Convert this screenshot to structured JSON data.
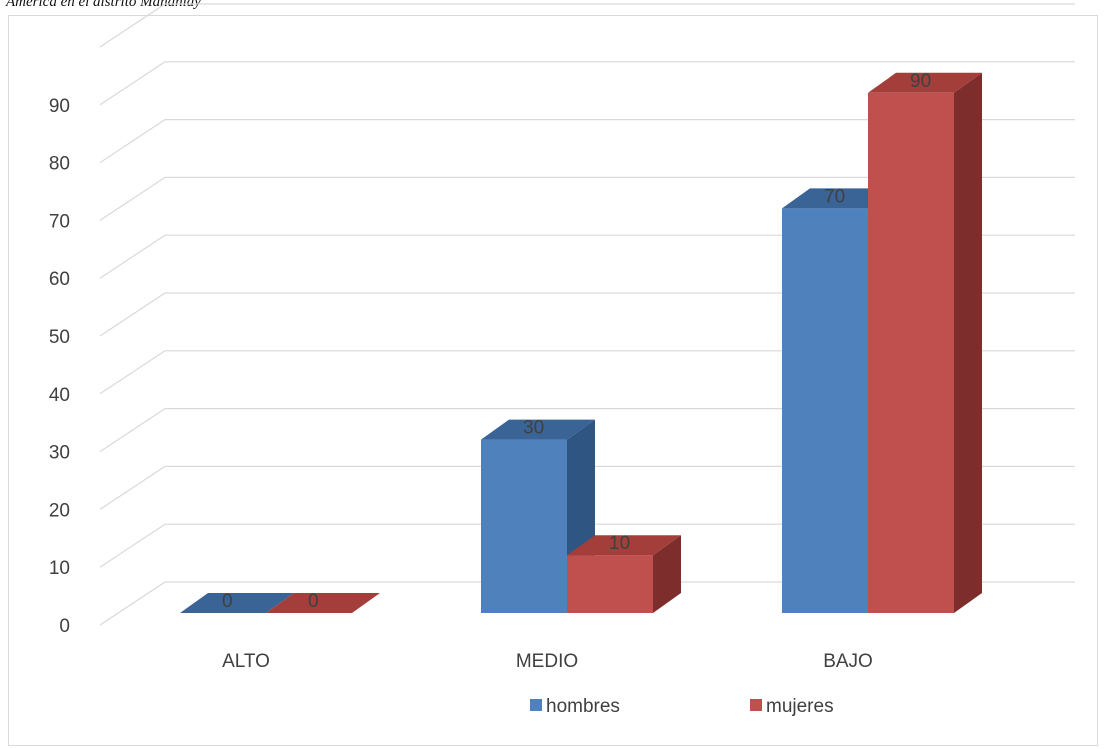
{
  "caption": "América en el distrito Mañaniay",
  "colors": {
    "hombres": "#4f81bd",
    "mujeres": "#c0504d",
    "grid": "#d9d9d9",
    "text": "#404040"
  },
  "chart_data": {
    "type": "bar",
    "categories": [
      "ALTO",
      "MEDIO",
      "BAJO"
    ],
    "series": [
      {
        "name": "hombres",
        "values": [
          0,
          30,
          70
        ]
      },
      {
        "name": "mujeres",
        "values": [
          0,
          10,
          90
        ]
      }
    ],
    "ylim": [
      0,
      90
    ],
    "yticks": [
      0,
      10,
      20,
      30,
      40,
      50,
      60,
      70,
      80,
      90
    ],
    "grid": true,
    "legend": "bottom",
    "style": "3d-clustered-column"
  }
}
